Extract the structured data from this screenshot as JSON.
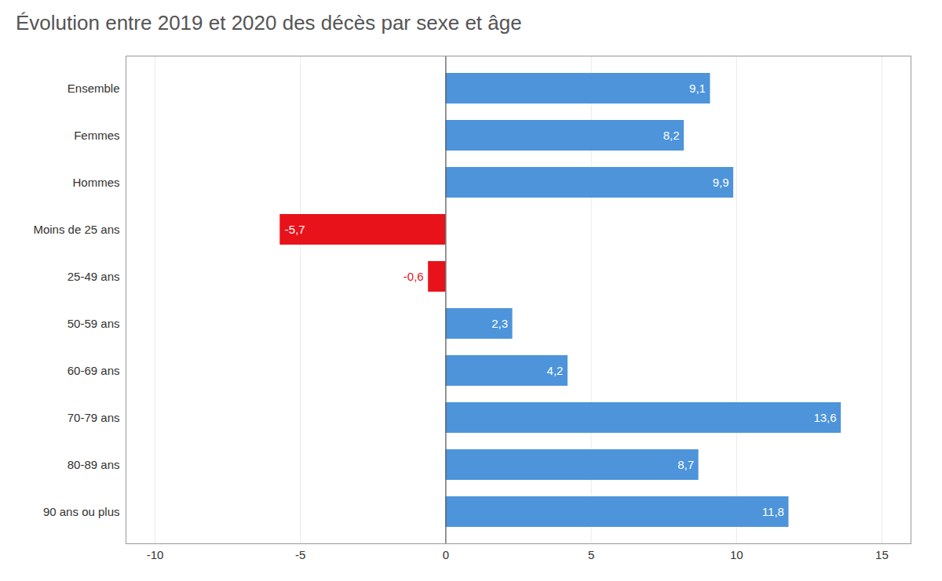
{
  "chart_data": {
    "type": "bar",
    "orientation": "horizontal",
    "title": "Évolution entre 2019 et 2020 des décès par sexe et âge",
    "categories": [
      "Ensemble",
      "Femmes",
      "Hommes",
      "Moins de 25 ans",
      "25-49 ans",
      "50-59 ans",
      "60-69 ans",
      "70-79 ans",
      "80-89 ans",
      "90 ans ou plus"
    ],
    "values": [
      9.1,
      8.2,
      9.9,
      -5.7,
      -0.6,
      2.3,
      4.2,
      13.6,
      8.7,
      11.8
    ],
    "value_labels": [
      "9,1",
      "8,2",
      "9,9",
      "-5,7",
      "-0,6",
      "2,3",
      "4,2",
      "13,6",
      "8,7",
      "11,8"
    ],
    "colors": [
      "#4d94db",
      "#4d94db",
      "#4d94db",
      "#e8131a",
      "#e8131a",
      "#4d94db",
      "#4d94db",
      "#4d94db",
      "#4d94db",
      "#4d94db"
    ],
    "xlim": [
      -11,
      16
    ],
    "xticks": [
      -10,
      -5,
      0,
      5,
      10,
      15
    ],
    "grid": true,
    "data_labels": true
  }
}
